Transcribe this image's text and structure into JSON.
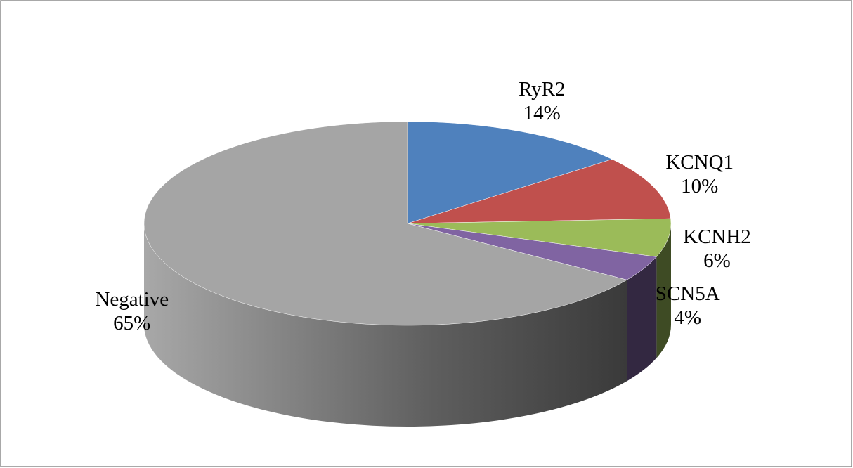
{
  "chart_data": {
    "type": "pie",
    "categories": [
      "RyR2",
      "KCNQ1",
      "KCNH2",
      "SCN5A",
      "Negative"
    ],
    "values": [
      14,
      10,
      6,
      4,
      65
    ],
    "value_labels": [
      "14%",
      "10%",
      "6%",
      "4%",
      "65%"
    ],
    "colors": [
      "#4f81bd",
      "#c0504d",
      "#9bbb59",
      "#8064a2",
      "#a5a5a5"
    ]
  }
}
